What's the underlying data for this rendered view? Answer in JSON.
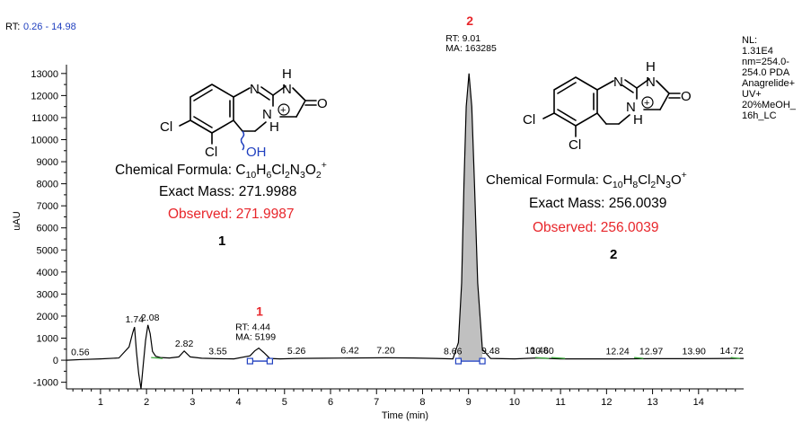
{
  "header": {
    "rt_label": "RT:",
    "rt_range": "0.26 - 14.98"
  },
  "nl_box": {
    "lines": [
      "NL:",
      "1.31E4",
      "nm=254.0-",
      "254.0  PDA",
      "Anagrelide+",
      "UV+",
      "20%MeOH_",
      "16h_LC"
    ]
  },
  "chart_data": {
    "type": "line",
    "xlabel": "Time (min)",
    "ylabel": "uAU",
    "xlim": [
      0.26,
      14.98
    ],
    "ylim": [
      -1300,
      13400
    ],
    "x_ticks": [
      1,
      2,
      3,
      4,
      5,
      6,
      7,
      8,
      9,
      10,
      11,
      12,
      13,
      14
    ],
    "y_ticks": [
      -1000,
      0,
      1000,
      2000,
      3000,
      4000,
      5000,
      6000,
      7000,
      8000,
      9000,
      10000,
      11000,
      12000,
      13000
    ],
    "x": [
      0.26,
      0.6,
      1.0,
      1.4,
      1.62,
      1.7,
      1.74,
      1.78,
      1.83,
      1.88,
      1.93,
      1.98,
      2.03,
      2.08,
      2.13,
      2.2,
      2.3,
      2.5,
      2.7,
      2.82,
      2.95,
      3.2,
      3.55,
      3.9,
      4.25,
      4.35,
      4.44,
      4.55,
      4.68,
      4.9,
      5.26,
      5.8,
      6.42,
      7.2,
      7.8,
      8.3,
      8.66,
      8.78,
      8.85,
      8.9,
      8.95,
      9.01,
      9.07,
      9.13,
      9.2,
      9.3,
      9.48,
      10.0,
      10.48,
      10.6,
      11.0,
      12.24,
      12.97,
      13.9,
      14.72,
      14.98
    ],
    "y": [
      0,
      30,
      60,
      100,
      600,
      1250,
      1500,
      400,
      -600,
      -1300,
      -200,
      900,
      1600,
      1200,
      400,
      180,
      120,
      100,
      150,
      420,
      150,
      90,
      70,
      60,
      200,
      420,
      550,
      350,
      80,
      60,
      80,
      90,
      100,
      110,
      100,
      80,
      60,
      800,
      3500,
      8000,
      11500,
      13000,
      11500,
      8000,
      3500,
      500,
      80,
      60,
      100,
      90,
      60,
      60,
      70,
      70,
      80,
      80
    ],
    "series_color": "#000000",
    "peak_fill": "#c0c0c0",
    "baseline_color": "#1f3fbf",
    "integration_color": "#3aa83a",
    "rt_labels": [
      {
        "x": 0.56,
        "y": 30,
        "text": "0.56"
      },
      {
        "x": 1.74,
        "y": 1500,
        "text": "1.74"
      },
      {
        "x": 2.08,
        "y": 1600,
        "text": "2.08"
      },
      {
        "x": 2.82,
        "y": 420,
        "text": "2.82"
      },
      {
        "x": 3.55,
        "y": 70,
        "text": "3.55"
      },
      {
        "x": 5.26,
        "y": 80,
        "text": "5.26"
      },
      {
        "x": 6.42,
        "y": 100,
        "text": "6.42"
      },
      {
        "x": 7.2,
        "y": 110,
        "text": "7.20"
      },
      {
        "x": 8.66,
        "y": 60,
        "text": "8.66"
      },
      {
        "x": 9.48,
        "y": 80,
        "text": "9.48"
      },
      {
        "x": 10.48,
        "y": 100,
        "text": "10.48"
      },
      {
        "x": 10.6,
        "y": 90,
        "text": "10.60"
      },
      {
        "x": 12.24,
        "y": 60,
        "text": "12.24"
      },
      {
        "x": 12.97,
        "y": 70,
        "text": "12.97"
      },
      {
        "x": 13.9,
        "y": 70,
        "text": "13.90"
      },
      {
        "x": 14.72,
        "y": 80,
        "text": "14.72"
      }
    ],
    "peaks": [
      {
        "id": "1",
        "rt_text": "RT: 4.44",
        "ma_text": "MA: 5199",
        "x": 4.44,
        "y": 550,
        "start": 4.25,
        "end": 4.68
      },
      {
        "id": "2",
        "rt_text": "RT: 9.01",
        "ma_text": "MA: 163285",
        "x": 9.01,
        "y": 13000,
        "start": 8.78,
        "end": 9.3
      }
    ]
  },
  "compound1": {
    "label": "1",
    "formula_prefix": "Chemical Formula: C",
    "formula_parts": [
      "10",
      "H",
      "6",
      "Cl",
      "2",
      "N",
      "3",
      "O",
      "2",
      "+"
    ],
    "exact_mass": "Exact Mass: 271.9988",
    "observed": "Observed: 271.9987",
    "atoms": {
      "cl_left": "Cl",
      "cl_bottom": "Cl",
      "n_top": "N",
      "nh_top": "H",
      "nh_top_n": "N",
      "n_plus": "N",
      "n_plus_h": "H",
      "oh": "OH",
      "o": "O"
    }
  },
  "compound2": {
    "label": "2",
    "formula_prefix": "Chemical Formula: C",
    "formula_parts": [
      "10",
      "H",
      "8",
      "Cl",
      "2",
      "N",
      "3",
      "O",
      "+"
    ],
    "exact_mass": "Exact Mass: 256.0039",
    "observed": "Observed: 256.0039",
    "atoms": {
      "cl_left": "Cl",
      "cl_bottom": "Cl",
      "n_top": "N",
      "nh_top": "H",
      "nh_top_n": "N",
      "n_plus": "N",
      "n_plus_h": "H",
      "o": "O"
    }
  }
}
